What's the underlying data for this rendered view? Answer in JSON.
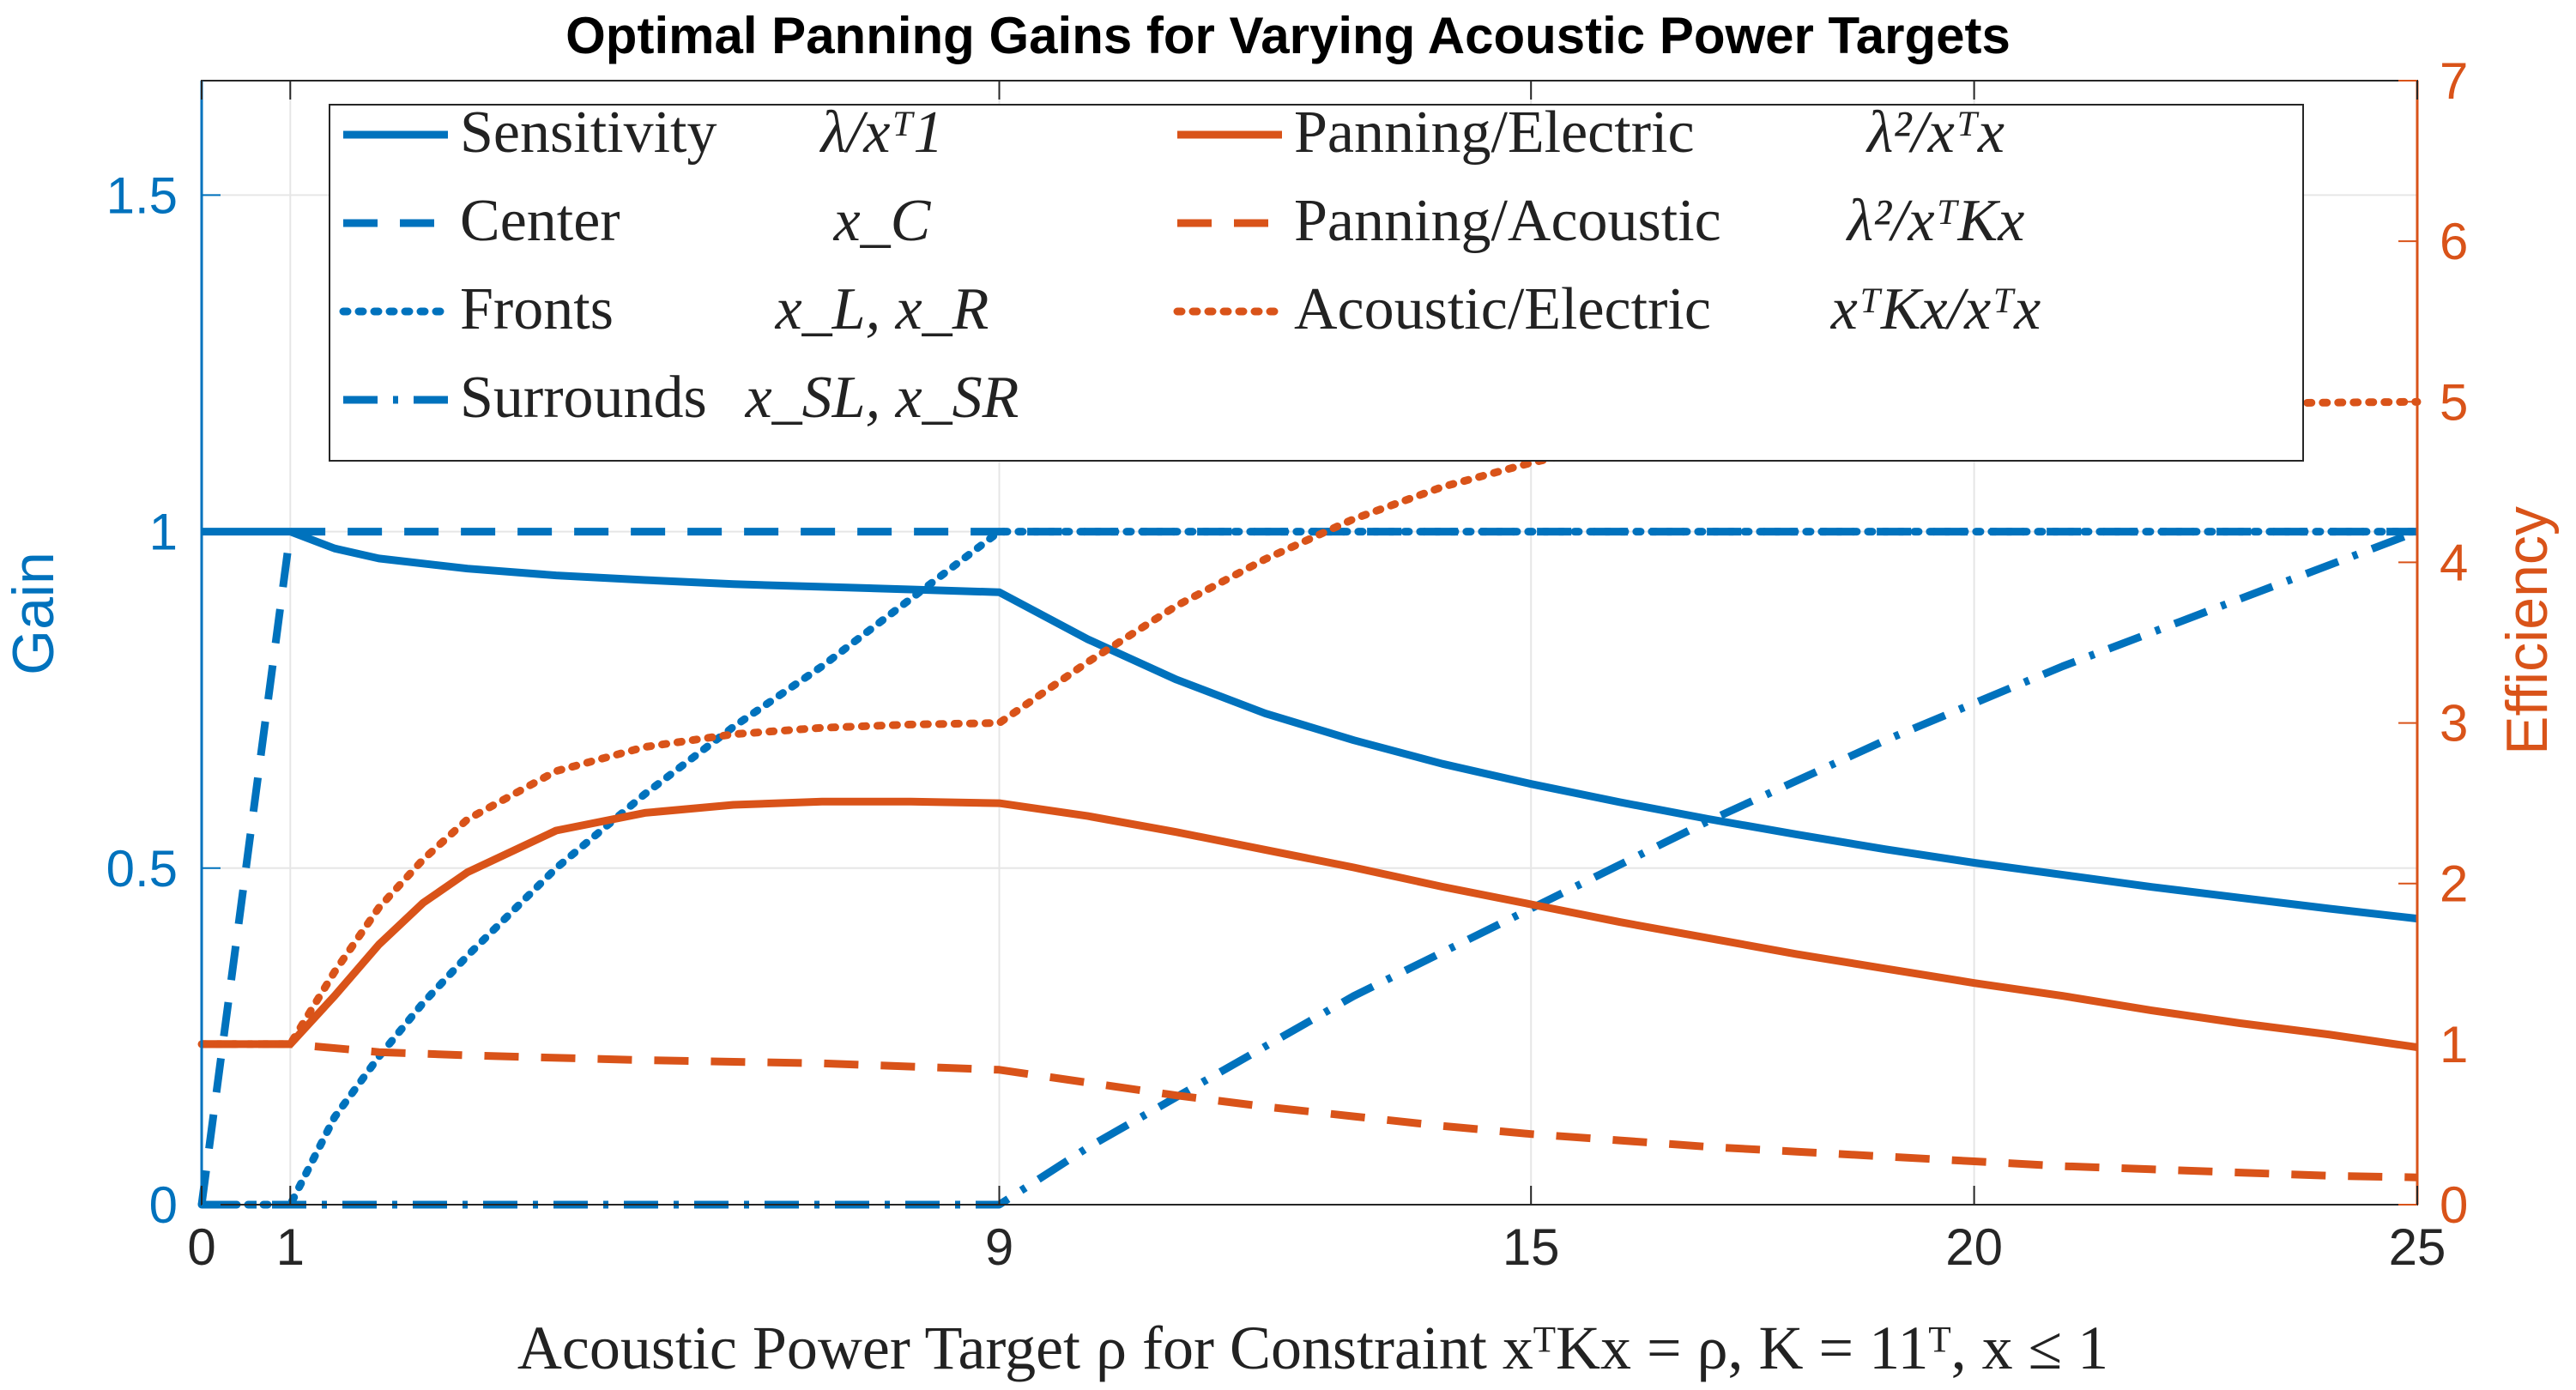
{
  "chart_data": {
    "type": "line",
    "title": "Optimal Panning Gains for Varying Acoustic Power Targets",
    "xlabel": "Acoustic Power Target ρ for Constraint xᵀKx = ρ,  K = 11ᵀ,  x ≤ 1",
    "xlim": [
      0,
      25
    ],
    "xticks": [
      0,
      1,
      9,
      15,
      20,
      25
    ],
    "left_axis": {
      "label": "Gain",
      "ylim": [
        0,
        1.67
      ],
      "ticks": [
        0,
        0.5,
        1,
        1.5
      ],
      "tick_labels": [
        "0",
        "0.5",
        "1",
        "1.5"
      ],
      "color": "#0072BD"
    },
    "right_axis": {
      "label": "Efficiency",
      "ylim": [
        0,
        7
      ],
      "ticks": [
        0,
        1,
        2,
        3,
        4,
        5,
        6,
        7
      ],
      "tick_labels": [
        "0",
        "1",
        "2",
        "3",
        "4",
        "5",
        "6",
        "7"
      ],
      "color": "#D95319"
    },
    "series": [
      {
        "name": "Sensitivity",
        "formula": "λ/xᵀ1",
        "axis": "left",
        "color": "#0072BD",
        "style": "solid",
        "x": [
          0,
          1,
          1.5,
          2,
          3,
          4,
          5,
          6,
          7,
          8,
          9,
          10,
          11,
          12,
          13,
          14,
          15,
          16,
          17,
          18,
          19,
          20,
          21,
          22,
          23,
          24,
          25
        ],
        "y": [
          1,
          1,
          0.975,
          0.96,
          0.945,
          0.935,
          0.928,
          0.922,
          0.918,
          0.914,
          0.91,
          0.84,
          0.78,
          0.73,
          0.69,
          0.655,
          0.625,
          0.598,
          0.573,
          0.55,
          0.528,
          0.508,
          0.49,
          0.472,
          0.456,
          0.44,
          0.425
        ]
      },
      {
        "name": "Center",
        "formula": "x_C",
        "axis": "left",
        "color": "#0072BD",
        "style": "dashed",
        "x": [
          0,
          1,
          25
        ],
        "y": [
          0,
          1,
          1
        ]
      },
      {
        "name": "Fronts",
        "formula": "x_L, x_R",
        "axis": "left",
        "color": "#0072BD",
        "style": "dotted",
        "x": [
          0,
          1,
          1.5,
          2,
          2.5,
          3,
          4,
          5,
          6,
          7,
          8,
          9,
          25
        ],
        "y": [
          0,
          0,
          0.13,
          0.22,
          0.3,
          0.37,
          0.5,
          0.61,
          0.71,
          0.8,
          0.9,
          1,
          1
        ]
      },
      {
        "name": "Surrounds",
        "formula": "x_SL, x_SR",
        "axis": "left",
        "color": "#0072BD",
        "style": "dashdot",
        "x": [
          0,
          9,
          10,
          11,
          13,
          15,
          17,
          19,
          21,
          23,
          25
        ],
        "y": [
          0,
          0,
          0.085,
          0.16,
          0.31,
          0.44,
          0.57,
          0.69,
          0.8,
          0.9,
          1
        ]
      },
      {
        "name": "Panning/Electric",
        "formula": "λ²/xᵀx",
        "axis": "right",
        "color": "#D95319",
        "style": "solid",
        "x": [
          0,
          1,
          1.5,
          2,
          2.5,
          3,
          4,
          5,
          6,
          7,
          8,
          9,
          10,
          11,
          12,
          13,
          14,
          15,
          16,
          17,
          18,
          19,
          20,
          21,
          22,
          23,
          24,
          25
        ],
        "y": [
          1,
          1,
          1.3,
          1.62,
          1.88,
          2.07,
          2.33,
          2.44,
          2.49,
          2.51,
          2.51,
          2.5,
          2.42,
          2.32,
          2.21,
          2.1,
          1.98,
          1.87,
          1.76,
          1.66,
          1.56,
          1.47,
          1.38,
          1.3,
          1.21,
          1.13,
          1.06,
          0.98
        ]
      },
      {
        "name": "Panning/Acoustic",
        "formula": "λ²/xᵀKx",
        "axis": "right",
        "color": "#D95319",
        "style": "dashed",
        "x": [
          0,
          1,
          2,
          3,
          5,
          7,
          9,
          10,
          11,
          12,
          13,
          14,
          15,
          16,
          17,
          18,
          19,
          20,
          21,
          22,
          23,
          24,
          25
        ],
        "y": [
          1,
          1,
          0.95,
          0.93,
          0.9,
          0.88,
          0.84,
          0.76,
          0.68,
          0.61,
          0.55,
          0.49,
          0.44,
          0.4,
          0.36,
          0.33,
          0.3,
          0.27,
          0.24,
          0.22,
          0.2,
          0.18,
          0.17
        ]
      },
      {
        "name": "Acoustic/Electric",
        "formula": "xᵀKx/xᵀx",
        "axis": "right",
        "color": "#D95319",
        "style": "dotted",
        "x": [
          0,
          1,
          1.5,
          2,
          2.5,
          3,
          4,
          5,
          6,
          7,
          8,
          9,
          10,
          11,
          12,
          13,
          14,
          15,
          16,
          17,
          18,
          19,
          20,
          21,
          22,
          23,
          24,
          25
        ],
        "y": [
          1,
          1,
          1.45,
          1.85,
          2.15,
          2.4,
          2.7,
          2.85,
          2.93,
          2.97,
          2.99,
          3,
          3.38,
          3.73,
          4.02,
          4.27,
          4.47,
          4.62,
          4.74,
          4.82,
          4.88,
          4.92,
          4.95,
          4.97,
          4.985,
          4.99,
          4.995,
          5
        ]
      }
    ],
    "legend": {
      "position": "top-left"
    },
    "grid": true
  }
}
